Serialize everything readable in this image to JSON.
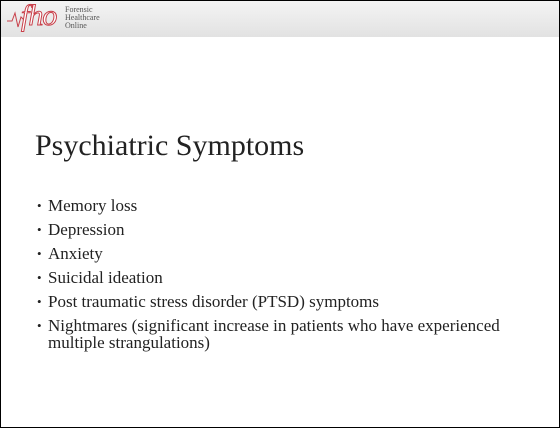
{
  "header": {
    "logo": "fho",
    "lines": [
      "Forensic",
      "Healthcare",
      "Online"
    ]
  },
  "title": "Psychiatric Symptoms",
  "bullets": [
    "Memory loss",
    "Depression",
    "Anxiety",
    "Suicidal ideation",
    "Post traumatic stress disorder (PTSD) symptoms",
    "Nightmares (significant increase in patients who have experienced multiple strangulations)"
  ]
}
